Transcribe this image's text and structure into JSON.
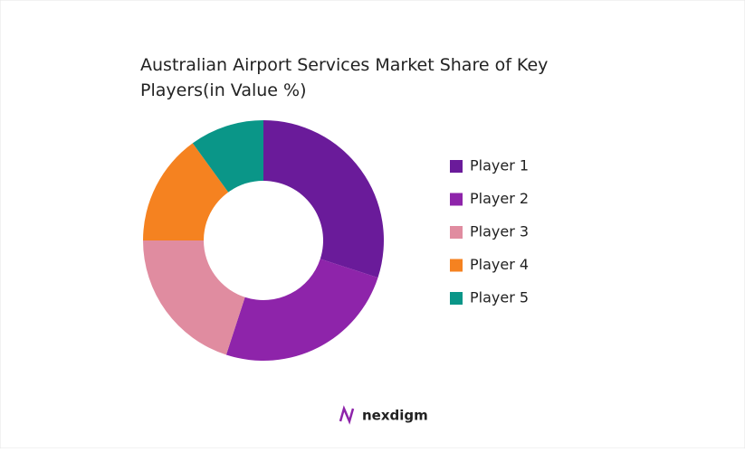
{
  "chart_data": {
    "type": "donut",
    "title": "Australian Airport Services Market Share of Key Players(in Value %)",
    "categories": [
      "Player 1",
      "Player 2",
      "Player 3",
      "Player 4",
      "Player 5"
    ],
    "values": [
      30,
      25,
      20,
      15,
      10
    ],
    "colors": [
      "#6a1b9a",
      "#8e24aa",
      "#e08ca0",
      "#f58220",
      "#0a9688"
    ],
    "legend": "right"
  },
  "footer": {
    "logo": "nexdigm"
  }
}
